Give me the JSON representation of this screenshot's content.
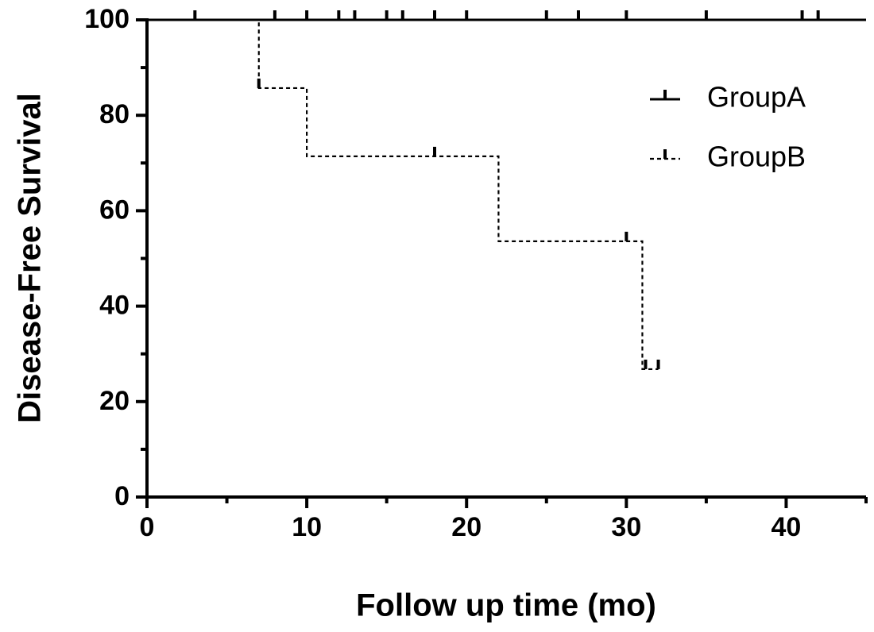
{
  "chart_data": {
    "type": "line",
    "x_label": "Follow up time (mo)",
    "y_label": "Disease-Free Survival",
    "xlim": [
      0,
      45
    ],
    "xticks": [
      0,
      10,
      20,
      30,
      40
    ],
    "xminor_ticks": [
      5,
      15,
      25,
      35,
      45
    ],
    "ylim": [
      0,
      100
    ],
    "yticks": [
      0,
      20,
      40,
      60,
      80,
      100
    ],
    "yminor_ticks": [
      10,
      30,
      50,
      70,
      90
    ],
    "legend": "upper right",
    "series": [
      {
        "name": "GroupA",
        "color": "#000000",
        "dashed": false,
        "x": [
          0,
          45
        ],
        "values": [
          100,
          100
        ],
        "censor_x": [
          3,
          8,
          10,
          12,
          13,
          15,
          16,
          18,
          20,
          25,
          27,
          30,
          35,
          41,
          42
        ],
        "censor_values": [
          100,
          100,
          100,
          100,
          100,
          100,
          100,
          100,
          100,
          100,
          100,
          100,
          100,
          100,
          100
        ]
      },
      {
        "name": "GroupB",
        "color": "#000000",
        "dashed": true,
        "x": [
          0,
          7,
          10,
          22,
          31,
          32
        ],
        "values": [
          100,
          85.7,
          71.4,
          53.6,
          26.8,
          26.8
        ],
        "censor_x": [
          7,
          18,
          30,
          31.2,
          32
        ],
        "censor_values": [
          85.7,
          71.4,
          53.6,
          26.8,
          26.8
        ]
      }
    ]
  }
}
